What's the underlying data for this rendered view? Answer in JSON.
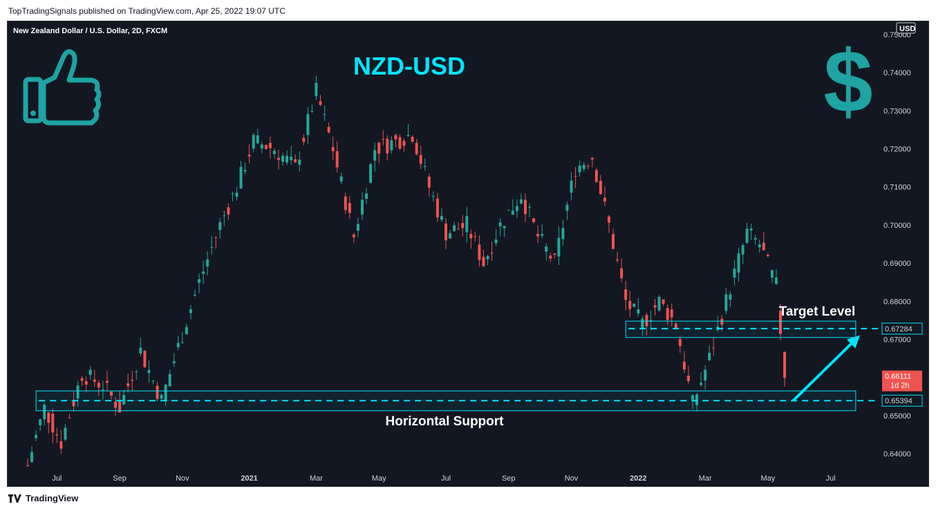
{
  "header": {
    "published": "TopTradingSignals published on TradingView.com, Apr 25, 2022 19:07 UTC"
  },
  "footer": {
    "brand": "TradingView",
    "logo_icon": "tradingview-logo-icon"
  },
  "colors": {
    "background": "#131722",
    "up": "#26a69a",
    "down": "#ef5350",
    "accent": "#00e5ff",
    "icon": "#1fa3a3",
    "text": "#d1d4dc"
  },
  "chart_data": {
    "type": "candlestick",
    "instrument": "New Zealand Dollar / U.S. Dollar, 2D, FXCM",
    "title": "NZD-USD",
    "currency_label": "USD",
    "y_ticks": [
      "0.75000",
      "0.74000",
      "0.73000",
      "0.72000",
      "0.71000",
      "0.70000",
      "0.69000",
      "0.68000",
      "0.67000",
      "0.65000",
      "0.64000"
    ],
    "ylim": [
      0.6355,
      0.7518
    ],
    "x_ticks": [
      "Jul",
      "Sep",
      "Nov",
      "2021",
      "Mar",
      "May",
      "Jul",
      "Sep",
      "Nov",
      "2022",
      "Mar",
      "May",
      "Jul"
    ],
    "bold_x_ticks": [
      "2021",
      "2022"
    ],
    "x_tick_index": [
      7,
      22,
      37,
      53,
      69,
      84,
      100,
      115,
      130,
      146,
      162,
      177,
      192
    ],
    "price_path": [
      [
        0,
        0.637
      ],
      [
        4,
        0.652
      ],
      [
        8,
        0.643
      ],
      [
        13,
        0.661
      ],
      [
        18,
        0.658
      ],
      [
        22,
        0.652
      ],
      [
        27,
        0.667
      ],
      [
        32,
        0.654
      ],
      [
        36,
        0.668
      ],
      [
        41,
        0.685
      ],
      [
        46,
        0.7
      ],
      [
        50,
        0.71
      ],
      [
        54,
        0.722
      ],
      [
        59,
        0.72
      ],
      [
        64,
        0.715
      ],
      [
        69,
        0.735
      ],
      [
        73,
        0.72
      ],
      [
        78,
        0.697
      ],
      [
        83,
        0.72
      ],
      [
        88,
        0.722
      ],
      [
        92,
        0.724
      ],
      [
        96,
        0.71
      ],
      [
        100,
        0.698
      ],
      [
        105,
        0.7
      ],
      [
        109,
        0.69
      ],
      [
        113,
        0.7
      ],
      [
        118,
        0.708
      ],
      [
        122,
        0.697
      ],
      [
        126,
        0.69
      ],
      [
        131,
        0.715
      ],
      [
        135,
        0.718
      ],
      [
        139,
        0.7
      ],
      [
        143,
        0.68
      ],
      [
        147,
        0.674
      ],
      [
        151,
        0.68
      ],
      [
        155,
        0.674
      ],
      [
        159,
        0.653
      ],
      [
        163,
        0.665
      ],
      [
        167,
        0.68
      ],
      [
        172,
        0.698
      ],
      [
        175,
        0.695
      ],
      [
        179,
        0.684
      ],
      [
        181,
        0.661
      ]
    ],
    "last_price": "0.66111",
    "countdown": "1d 2h",
    "levels": [
      {
        "name": "Target Level",
        "value": 0.67284,
        "label": "0.67284",
        "zone": [
          0.6705,
          0.6748
        ],
        "start_index": 144,
        "end_index": 198
      },
      {
        "name": "Horizontal Support",
        "value": 0.65394,
        "label": "0.65394",
        "zone": [
          0.6513,
          0.6565
        ],
        "start_index": 3,
        "end_index": 198
      }
    ],
    "annotations": [
      {
        "text": "Target Level",
        "anchor": "above-target-zone"
      },
      {
        "text": "Horizontal Support",
        "anchor": "below-support-zone"
      }
    ],
    "arrow": {
      "from": [
        183,
        0.6539
      ],
      "to": [
        199,
        0.6711
      ]
    },
    "icons": [
      "thumbs-up-icon",
      "dollar-sign-icon"
    ],
    "grid": false
  }
}
